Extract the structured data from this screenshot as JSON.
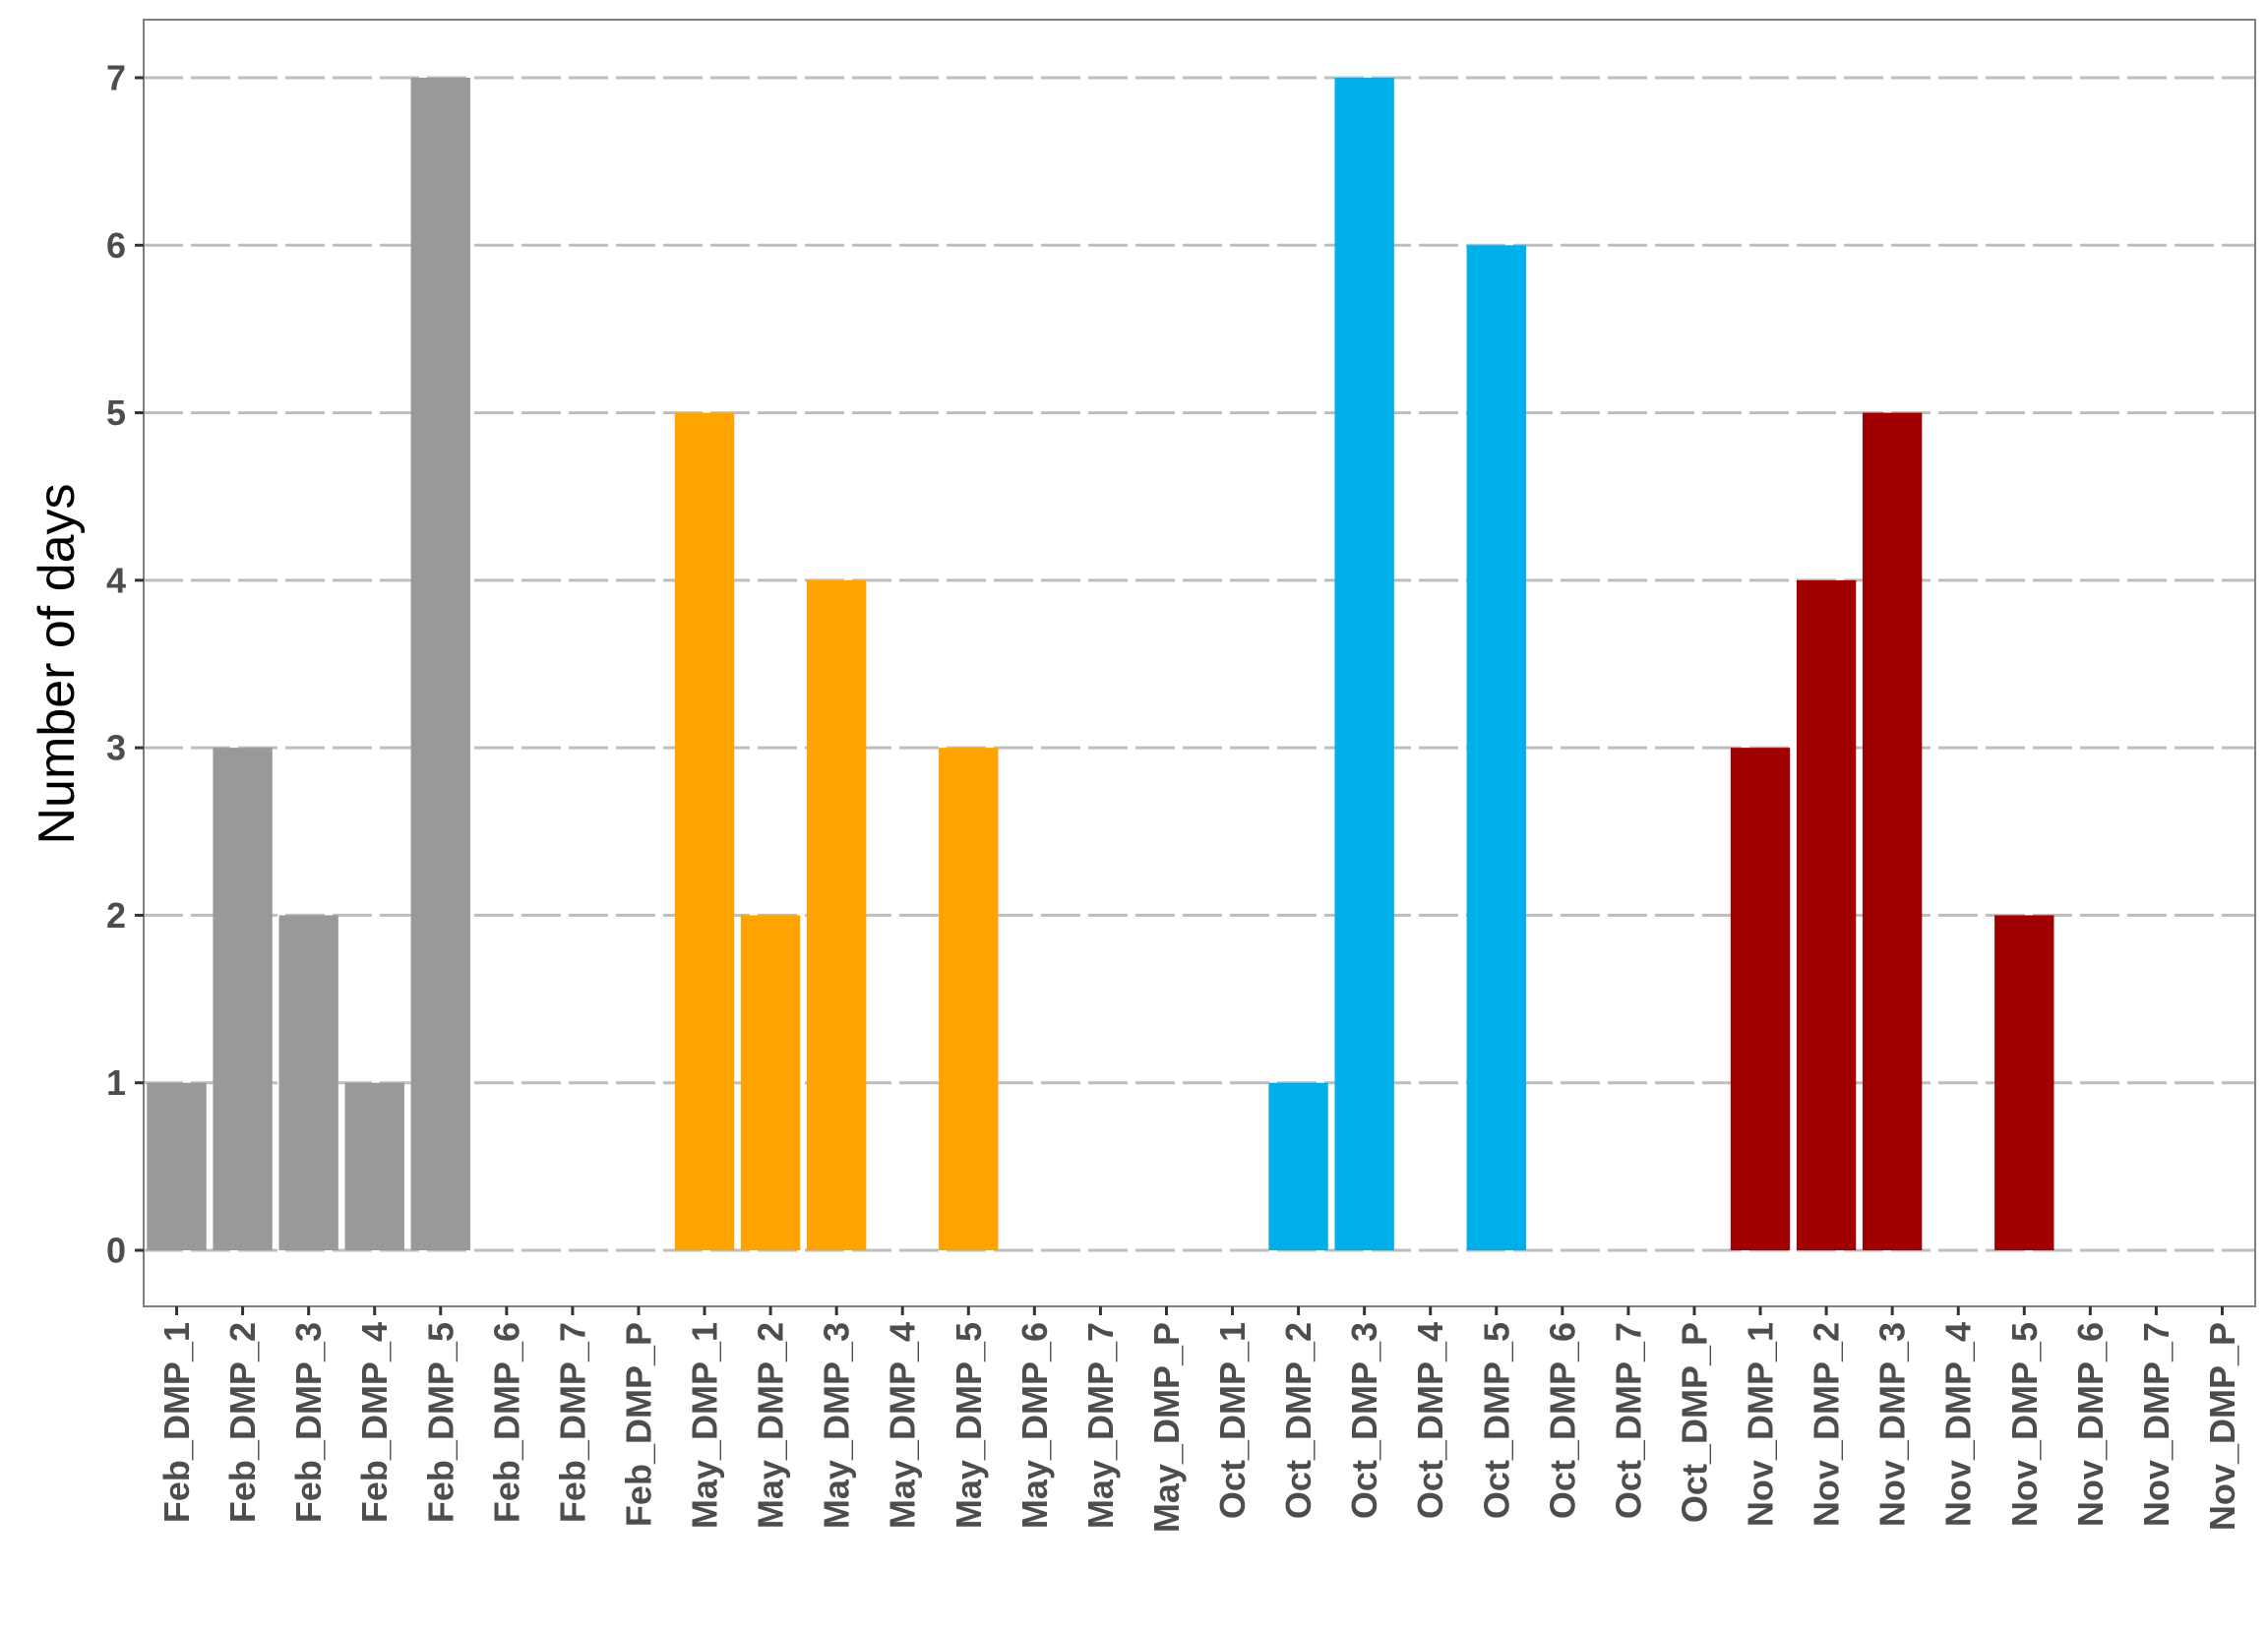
{
  "chart_data": {
    "type": "bar",
    "title": "",
    "xlabel": "",
    "ylabel": "Number of days",
    "ylim": [
      -0.35,
      7.35
    ],
    "yticks": [
      0,
      1,
      2,
      3,
      4,
      5,
      6,
      7
    ],
    "grid": "horizontal dashed",
    "legend": "none",
    "categories": [
      "Feb_DMP_1",
      "Feb_DMP_2",
      "Feb_DMP_3",
      "Feb_DMP_4",
      "Feb_DMP_5",
      "Feb_DMP_6",
      "Feb_DMP_7",
      "Feb_DMP_P",
      "May_DMP_1",
      "May_DMP_2",
      "May_DMP_3",
      "May_DMP_4",
      "May_DMP_5",
      "May_DMP_6",
      "May_DMP_7",
      "May_DMP_P",
      "Oct_DMP_1",
      "Oct_DMP_2",
      "Oct_DMP_3",
      "Oct_DMP_4",
      "Oct_DMP_5",
      "Oct_DMP_6",
      "Oct_DMP_7",
      "Oct_DMP_P",
      "Nov_DMP_1",
      "Nov_DMP_2",
      "Nov_DMP_3",
      "Nov_DMP_4",
      "Nov_DMP_5",
      "Nov_DMP_6",
      "Nov_DMP_7",
      "Nov_DMP_P"
    ],
    "values": [
      1,
      3,
      2,
      1,
      7,
      0,
      0,
      0,
      5,
      2,
      4,
      0,
      3,
      0,
      0,
      0,
      0,
      1,
      7,
      0,
      6,
      0,
      0,
      0,
      3,
      4,
      5,
      0,
      2,
      0,
      0,
      0
    ],
    "group_colors": {
      "Feb": "#999999",
      "May": "#FFA300",
      "Oct": "#00B0EA",
      "Nov": "#A00000"
    },
    "colors": {
      "grid": "#bebebe",
      "panel_border": "#7f7f7f",
      "tick_label": "#4d4d4d",
      "axis_title": "#000000",
      "background": "#ffffff"
    }
  }
}
